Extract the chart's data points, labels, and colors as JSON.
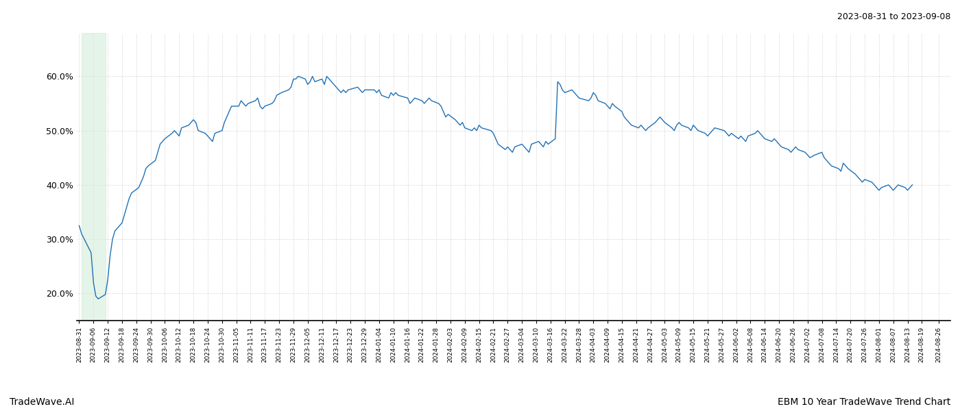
{
  "title_top_right": "2023-08-31 to 2023-09-08",
  "title_bottom_left": "TradeWave.AI",
  "title_bottom_right": "EBM 10 Year TradeWave Trend Chart",
  "line_color": "#2070b4",
  "line_width": 1.0,
  "highlight_color": "#d4edda",
  "highlight_alpha": 0.6,
  "highlight_start": "2023-09-01",
  "highlight_end": "2023-09-11",
  "background_color": "#ffffff",
  "grid_color": "#cccccc",
  "ylim": [
    15.0,
    68.0
  ],
  "yticks": [
    20.0,
    30.0,
    40.0,
    50.0,
    60.0
  ],
  "ytick_labels": [
    "20.0%",
    "30.0%",
    "40.0%",
    "50.0%",
    "60.0%"
  ],
  "fig_width": 14.0,
  "fig_height": 6.0,
  "dates": [
    "2023-08-31",
    "2023-09-01",
    "2023-09-05",
    "2023-09-06",
    "2023-09-07",
    "2023-09-08",
    "2023-09-11",
    "2023-09-12",
    "2023-09-13",
    "2023-09-14",
    "2023-09-15",
    "2023-09-18",
    "2023-09-19",
    "2023-09-20",
    "2023-09-21",
    "2023-09-22",
    "2023-09-25",
    "2023-09-26",
    "2023-09-27",
    "2023-09-28",
    "2023-09-29",
    "2023-10-02",
    "2023-10-03",
    "2023-10-04",
    "2023-10-05",
    "2023-10-06",
    "2023-10-09",
    "2023-10-10",
    "2023-10-11",
    "2023-10-12",
    "2023-10-13",
    "2023-10-16",
    "2023-10-17",
    "2023-10-18",
    "2023-10-19",
    "2023-10-20",
    "2023-10-23",
    "2023-10-24",
    "2023-10-25",
    "2023-10-26",
    "2023-10-27",
    "2023-10-30",
    "2023-10-31",
    "2023-11-01",
    "2023-11-02",
    "2023-11-03",
    "2023-11-06",
    "2023-11-07",
    "2023-11-08",
    "2023-11-09",
    "2023-11-10",
    "2023-11-13",
    "2023-11-14",
    "2023-11-15",
    "2023-11-16",
    "2023-11-17",
    "2023-11-20",
    "2023-11-21",
    "2023-11-22",
    "2023-11-24",
    "2023-11-27",
    "2023-11-28",
    "2023-11-29",
    "2023-11-30",
    "2023-12-01",
    "2023-12-04",
    "2023-12-05",
    "2023-12-06",
    "2023-12-07",
    "2023-12-08",
    "2023-12-11",
    "2023-12-12",
    "2023-12-13",
    "2023-12-14",
    "2023-12-15",
    "2023-12-18",
    "2023-12-19",
    "2023-12-20",
    "2023-12-21",
    "2023-12-22",
    "2023-12-26",
    "2023-12-27",
    "2023-12-28",
    "2023-12-29",
    "2024-01-02",
    "2024-01-03",
    "2024-01-04",
    "2024-01-05",
    "2024-01-08",
    "2024-01-09",
    "2024-01-10",
    "2024-01-11",
    "2024-01-12",
    "2024-01-16",
    "2024-01-17",
    "2024-01-18",
    "2024-01-19",
    "2024-01-22",
    "2024-01-23",
    "2024-01-24",
    "2024-01-25",
    "2024-01-26",
    "2024-01-29",
    "2024-01-30",
    "2024-01-31",
    "2024-02-01",
    "2024-02-02",
    "2024-02-05",
    "2024-02-06",
    "2024-02-07",
    "2024-02-08",
    "2024-02-09",
    "2024-02-12",
    "2024-02-13",
    "2024-02-14",
    "2024-02-15",
    "2024-02-16",
    "2024-02-20",
    "2024-02-21",
    "2024-02-22",
    "2024-02-23",
    "2024-02-26",
    "2024-02-27",
    "2024-02-28",
    "2024-02-29",
    "2024-03-01",
    "2024-03-04",
    "2024-03-05",
    "2024-03-06",
    "2024-03-07",
    "2024-03-08",
    "2024-03-11",
    "2024-03-12",
    "2024-03-13",
    "2024-03-14",
    "2024-03-15",
    "2024-03-18",
    "2024-03-19",
    "2024-03-20",
    "2024-03-21",
    "2024-03-22",
    "2024-03-25",
    "2024-03-26",
    "2024-03-27",
    "2024-03-28",
    "2024-04-01",
    "2024-04-02",
    "2024-04-03",
    "2024-04-04",
    "2024-04-05",
    "2024-04-08",
    "2024-04-09",
    "2024-04-10",
    "2024-04-11",
    "2024-04-12",
    "2024-04-15",
    "2024-04-16",
    "2024-04-17",
    "2024-04-18",
    "2024-04-19",
    "2024-04-22",
    "2024-04-23",
    "2024-04-24",
    "2024-04-25",
    "2024-04-26",
    "2024-04-29",
    "2024-04-30",
    "2024-05-01",
    "2024-05-02",
    "2024-05-03",
    "2024-05-06",
    "2024-05-07",
    "2024-05-08",
    "2024-05-09",
    "2024-05-10",
    "2024-05-13",
    "2024-05-14",
    "2024-05-15",
    "2024-05-16",
    "2024-05-17",
    "2024-05-20",
    "2024-05-21",
    "2024-05-22",
    "2024-05-23",
    "2024-05-24",
    "2024-05-28",
    "2024-05-29",
    "2024-05-30",
    "2024-05-31",
    "2024-06-03",
    "2024-06-04",
    "2024-06-05",
    "2024-06-06",
    "2024-06-07",
    "2024-06-10",
    "2024-06-11",
    "2024-06-12",
    "2024-06-13",
    "2024-06-14",
    "2024-06-17",
    "2024-06-18",
    "2024-06-19",
    "2024-06-20",
    "2024-06-21",
    "2024-06-24",
    "2024-06-25",
    "2024-06-26",
    "2024-06-27",
    "2024-06-28",
    "2024-07-01",
    "2024-07-02",
    "2024-07-03",
    "2024-07-05",
    "2024-07-08",
    "2024-07-09",
    "2024-07-10",
    "2024-07-11",
    "2024-07-12",
    "2024-07-15",
    "2024-07-16",
    "2024-07-17",
    "2024-07-18",
    "2024-07-19",
    "2024-07-22",
    "2024-07-23",
    "2024-07-24",
    "2024-07-25",
    "2024-07-26",
    "2024-07-29",
    "2024-07-30",
    "2024-07-31",
    "2024-08-01",
    "2024-08-02",
    "2024-08-05",
    "2024-08-06",
    "2024-08-07",
    "2024-08-08",
    "2024-08-09",
    "2024-08-12",
    "2024-08-13",
    "2024-08-14",
    "2024-08-15",
    "2024-08-16",
    "2024-08-19",
    "2024-08-20",
    "2024-08-21",
    "2024-08-22",
    "2024-08-23",
    "2024-08-26",
    "2024-08-27",
    "2024-08-28",
    "2024-08-29",
    "2024-08-30"
  ],
  "values": [
    32.5,
    31.0,
    27.5,
    22.0,
    19.5,
    19.0,
    19.8,
    22.5,
    27.0,
    30.0,
    31.5,
    33.0,
    34.5,
    36.0,
    37.5,
    38.5,
    39.5,
    40.5,
    41.5,
    43.0,
    43.5,
    44.5,
    46.0,
    47.5,
    48.0,
    48.5,
    49.5,
    50.0,
    49.5,
    49.0,
    50.5,
    51.0,
    51.5,
    52.0,
    51.5,
    50.0,
    49.5,
    49.0,
    48.5,
    48.0,
    49.5,
    50.0,
    51.5,
    52.5,
    53.5,
    54.5,
    54.5,
    55.5,
    55.0,
    54.5,
    55.0,
    55.5,
    56.0,
    54.5,
    54.0,
    54.5,
    55.0,
    55.5,
    56.5,
    57.0,
    57.5,
    58.0,
    59.5,
    59.5,
    60.0,
    59.5,
    58.5,
    59.0,
    60.0,
    59.0,
    59.5,
    58.5,
    60.0,
    59.5,
    59.0,
    57.5,
    57.0,
    57.5,
    57.0,
    57.5,
    58.0,
    57.5,
    57.0,
    57.5,
    57.5,
    57.0,
    57.5,
    56.5,
    56.0,
    57.0,
    56.5,
    57.0,
    56.5,
    56.0,
    55.0,
    55.5,
    56.0,
    55.5,
    55.0,
    55.5,
    56.0,
    55.5,
    55.0,
    54.5,
    53.5,
    52.5,
    53.0,
    52.0,
    51.5,
    51.0,
    51.5,
    50.5,
    50.0,
    50.5,
    50.0,
    51.0,
    50.5,
    50.0,
    49.5,
    48.5,
    47.5,
    46.5,
    47.0,
    46.5,
    46.0,
    47.0,
    47.5,
    47.0,
    46.5,
    46.0,
    47.5,
    48.0,
    47.5,
    47.0,
    48.0,
    47.5,
    48.5,
    59.0,
    58.5,
    57.5,
    57.0,
    57.5,
    57.0,
    56.5,
    56.0,
    55.5,
    56.0,
    57.0,
    56.5,
    55.5,
    55.0,
    54.5,
    54.0,
    55.0,
    54.5,
    53.5,
    52.5,
    52.0,
    51.5,
    51.0,
    50.5,
    51.0,
    50.5,
    50.0,
    50.5,
    51.5,
    52.0,
    52.5,
    52.0,
    51.5,
    50.5,
    50.0,
    51.0,
    51.5,
    51.0,
    50.5,
    50.0,
    51.0,
    50.5,
    50.0,
    49.5,
    49.0,
    49.5,
    50.0,
    50.5,
    50.0,
    49.5,
    49.0,
    49.5,
    48.5,
    49.0,
    48.5,
    48.0,
    49.0,
    49.5,
    50.0,
    49.5,
    49.0,
    48.5,
    48.0,
    48.5,
    48.0,
    47.5,
    47.0,
    46.5,
    46.0,
    46.5,
    47.0,
    46.5,
    46.0,
    45.5,
    45.0,
    45.5,
    46.0,
    45.0,
    44.5,
    44.0,
    43.5,
    43.0,
    42.5,
    44.0,
    43.5,
    43.0,
    42.0,
    41.5,
    41.0,
    40.5,
    41.0,
    40.5,
    40.0,
    39.5,
    39.0,
    39.5,
    40.0,
    39.5,
    39.0,
    39.5,
    40.0,
    39.5,
    39.0,
    39.5,
    40.0
  ],
  "xtick_labels": [
    "2023-08-31",
    "2023-09-06",
    "2023-09-12",
    "2023-09-18",
    "2023-09-24",
    "2023-09-30",
    "2023-10-06",
    "2023-10-12",
    "2023-10-18",
    "2023-10-24",
    "2023-10-30",
    "2023-11-05",
    "2023-11-11",
    "2023-11-17",
    "2023-11-23",
    "2023-11-29",
    "2023-12-05",
    "2023-12-11",
    "2023-12-17",
    "2023-12-23",
    "2023-12-29",
    "2024-01-04",
    "2024-01-10",
    "2024-01-16",
    "2024-01-22",
    "2024-01-28",
    "2024-02-03",
    "2024-02-09",
    "2024-02-15",
    "2024-02-21",
    "2024-02-27",
    "2024-03-04",
    "2024-03-10",
    "2024-03-16",
    "2024-03-22",
    "2024-03-28",
    "2024-04-03",
    "2024-04-09",
    "2024-04-15",
    "2024-04-21",
    "2024-04-27",
    "2024-05-03",
    "2024-05-09",
    "2024-05-15",
    "2024-05-21",
    "2024-05-27",
    "2024-06-02",
    "2024-06-08",
    "2024-06-14",
    "2024-06-20",
    "2024-06-26",
    "2024-07-02",
    "2024-07-08",
    "2024-07-14",
    "2024-07-20",
    "2024-07-26",
    "2024-08-01",
    "2024-08-07",
    "2024-08-13",
    "2024-08-19",
    "2024-08-26"
  ]
}
